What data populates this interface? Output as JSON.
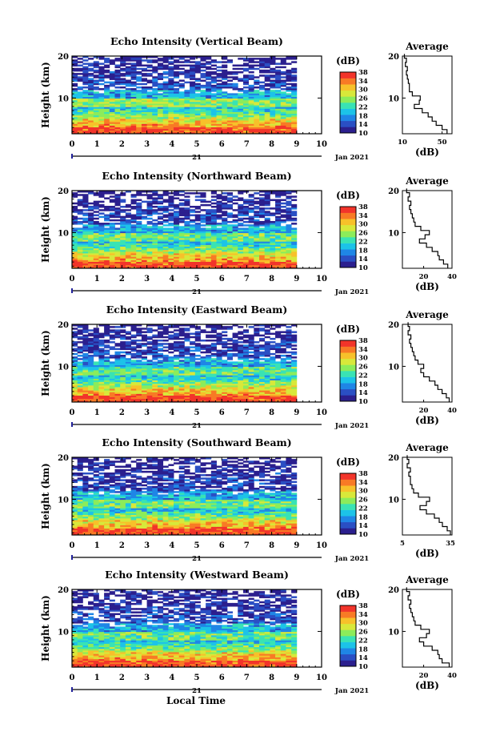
{
  "figure": {
    "xlabel": "Local Time",
    "date_day": "21",
    "date_month_year": "Jan 2021",
    "colorbar_title": "(dB)",
    "colorbar_ticks": [
      "10",
      "14",
      "18",
      "22",
      "26",
      "30",
      "34",
      "38"
    ],
    "colorscale": [
      "#2b1f8e",
      "#2a4fc4",
      "#1f86e6",
      "#1cc3e8",
      "#39e3b4",
      "#8cec5a",
      "#d8e83a",
      "#f7c12a",
      "#f87a25",
      "#f2342a"
    ],
    "profile_title": "Average",
    "profile_xlabel": "(dB)"
  },
  "chart_data": [
    {
      "type": "heatmap",
      "title": "Echo Intensity (Vertical Beam)",
      "xlabel": "Local Time",
      "ylabel": "Height (km)",
      "xlim": [
        0,
        10
      ],
      "ylim": [
        1.5,
        20
      ],
      "x_ticks": [
        0,
        1,
        2,
        3,
        4,
        5,
        6,
        7,
        8,
        9,
        10
      ],
      "y_ticks": [
        10,
        20
      ],
      "data_extent_x": [
        0,
        9
      ],
      "colorbar_range_db": [
        10,
        38
      ],
      "profile": {
        "title": "Average",
        "xlabel": "(dB)",
        "xlim": [
          10,
          60
        ],
        "x_ticks": [
          10,
          50
        ],
        "heights_km": [
          2,
          3,
          4,
          5,
          6,
          7,
          8,
          9,
          10,
          11,
          12,
          13,
          14,
          15,
          16,
          17,
          18,
          19,
          20
        ],
        "values_db": [
          55,
          50,
          44,
          40,
          36,
          30,
          22,
          27,
          28,
          20,
          17,
          17,
          16,
          15,
          14,
          15,
          13,
          14,
          12
        ]
      }
    },
    {
      "type": "heatmap",
      "title": "Echo Intensity (Northward Beam)",
      "xlabel": "Local Time",
      "ylabel": "Height (km)",
      "xlim": [
        0,
        10
      ],
      "ylim": [
        1.5,
        20
      ],
      "x_ticks": [
        0,
        1,
        2,
        3,
        4,
        5,
        6,
        7,
        8,
        9,
        10
      ],
      "y_ticks": [
        10,
        20
      ],
      "data_extent_x": [
        0,
        9
      ],
      "colorbar_range_db": [
        10,
        38
      ],
      "profile": {
        "title": "Average",
        "xlabel": "(dB)",
        "xlim": [
          5,
          40
        ],
        "x_ticks": [
          20,
          40
        ],
        "heights_km": [
          2,
          3,
          4,
          5,
          6,
          7,
          8,
          9,
          10,
          11,
          12,
          13,
          14,
          15,
          16,
          17,
          18,
          19,
          20
        ],
        "values_db": [
          37,
          34,
          31,
          30,
          26,
          22,
          17,
          21,
          24,
          18,
          14,
          13,
          12,
          11,
          10,
          11,
          9,
          10,
          8
        ]
      }
    },
    {
      "type": "heatmap",
      "title": "Echo Intensity (Eastward Beam)",
      "xlabel": "Local Time",
      "ylabel": "Height (km)",
      "xlim": [
        0,
        10
      ],
      "ylim": [
        1.5,
        20
      ],
      "x_ticks": [
        0,
        1,
        2,
        3,
        4,
        5,
        6,
        7,
        8,
        9,
        10
      ],
      "y_ticks": [
        10,
        20
      ],
      "data_extent_x": [
        0,
        9
      ],
      "colorbar_range_db": [
        10,
        38
      ],
      "profile": {
        "title": "Average",
        "xlabel": "(dB)",
        "xlim": [
          5,
          40
        ],
        "x_ticks": [
          20,
          40
        ],
        "heights_km": [
          2,
          3,
          4,
          5,
          6,
          7,
          8,
          9,
          10,
          11,
          12,
          13,
          14,
          15,
          16,
          17,
          18,
          19,
          20
        ],
        "values_db": [
          38,
          36,
          33,
          30,
          28,
          24,
          20,
          18,
          20,
          16,
          14,
          13,
          12,
          11,
          10,
          11,
          9,
          10,
          9
        ]
      }
    },
    {
      "type": "heatmap",
      "title": "Echo Intensity (Southward Beam)",
      "xlabel": "Local Time",
      "ylabel": "Height (km)",
      "xlim": [
        0,
        10
      ],
      "ylim": [
        1.5,
        20
      ],
      "x_ticks": [
        0,
        1,
        2,
        3,
        4,
        5,
        6,
        7,
        8,
        9,
        10
      ],
      "y_ticks": [
        10,
        20
      ],
      "data_extent_x": [
        0,
        9
      ],
      "colorbar_range_db": [
        10,
        38
      ],
      "profile": {
        "title": "Average",
        "xlabel": "(dB)",
        "xlim": [
          5,
          36
        ],
        "x_ticks": [
          5,
          35
        ],
        "heights_km": [
          2,
          3,
          4,
          5,
          6,
          7,
          8,
          9,
          10,
          11,
          12,
          13,
          14,
          15,
          16,
          17,
          18,
          19,
          20
        ],
        "values_db": [
          35,
          33,
          30,
          28,
          25,
          20,
          16,
          20,
          22,
          15,
          12,
          11,
          10,
          10,
          9,
          10,
          8,
          9,
          8
        ]
      }
    },
    {
      "type": "heatmap",
      "title": "Echo Intensity (Westward Beam)",
      "xlabel": "Local Time",
      "ylabel": "Height (km)",
      "xlim": [
        0,
        10
      ],
      "ylim": [
        1.5,
        20
      ],
      "x_ticks": [
        0,
        1,
        2,
        3,
        4,
        5,
        6,
        7,
        8,
        9,
        10
      ],
      "y_ticks": [
        10,
        20
      ],
      "data_extent_x": [
        0,
        9
      ],
      "colorbar_range_db": [
        10,
        38
      ],
      "profile": {
        "title": "Average",
        "xlabel": "(dB)",
        "xlim": [
          5,
          40
        ],
        "x_ticks": [
          20,
          40
        ],
        "heights_km": [
          2,
          3,
          4,
          5,
          6,
          7,
          8,
          9,
          10,
          11,
          12,
          13,
          14,
          15,
          16,
          17,
          18,
          19,
          20
        ],
        "values_db": [
          38,
          33,
          31,
          30,
          26,
          20,
          17,
          22,
          24,
          18,
          14,
          13,
          12,
          11,
          10,
          11,
          9,
          10,
          8
        ]
      }
    }
  ]
}
